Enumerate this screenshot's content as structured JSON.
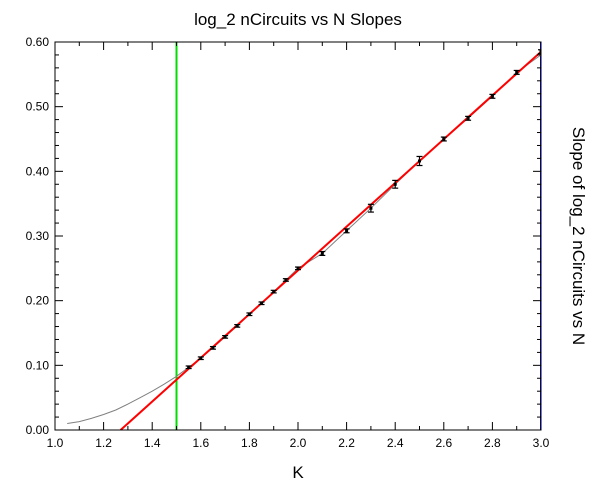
{
  "chart_data": {
    "type": "scatter",
    "title": "log_2 nCircuits  vs N  Slopes",
    "xlabel": "K",
    "ylabel": "Slope of log_2 nCircuits vs N",
    "xlim": [
      1.0,
      3.0
    ],
    "ylim": [
      0.0,
      0.6
    ],
    "x_ticks": [
      "1.0",
      "1.2",
      "1.4",
      "1.6",
      "1.8",
      "2.0",
      "2.2",
      "2.4",
      "2.6",
      "2.8",
      "3.0"
    ],
    "y_ticks": [
      "0.00",
      "0.10",
      "0.20",
      "0.30",
      "0.40",
      "0.50",
      "0.60"
    ],
    "grid": false,
    "series": [
      {
        "kind": "errorbar",
        "color": "#000000",
        "points": [
          {
            "x": 1.55,
            "y": 0.097,
            "err": 0.002
          },
          {
            "x": 1.6,
            "y": 0.111,
            "err": 0.002
          },
          {
            "x": 1.65,
            "y": 0.127,
            "err": 0.002
          },
          {
            "x": 1.7,
            "y": 0.144,
            "err": 0.002
          },
          {
            "x": 1.75,
            "y": 0.161,
            "err": 0.002
          },
          {
            "x": 1.8,
            "y": 0.179,
            "err": 0.002
          },
          {
            "x": 1.85,
            "y": 0.196,
            "err": 0.002
          },
          {
            "x": 1.9,
            "y": 0.214,
            "err": 0.002
          },
          {
            "x": 1.95,
            "y": 0.232,
            "err": 0.002
          },
          {
            "x": 2.0,
            "y": 0.25,
            "err": 0.002
          },
          {
            "x": 2.1,
            "y": 0.273,
            "err": 0.003
          },
          {
            "x": 2.2,
            "y": 0.308,
            "err": 0.003
          },
          {
            "x": 2.3,
            "y": 0.343,
            "err": 0.006
          },
          {
            "x": 2.4,
            "y": 0.38,
            "err": 0.006
          },
          {
            "x": 2.5,
            "y": 0.416,
            "err": 0.007
          },
          {
            "x": 2.6,
            "y": 0.45,
            "err": 0.003
          },
          {
            "x": 2.7,
            "y": 0.482,
            "err": 0.003
          },
          {
            "x": 2.8,
            "y": 0.516,
            "err": 0.003
          },
          {
            "x": 2.9,
            "y": 0.553,
            "err": 0.003
          },
          {
            "x": 3.0,
            "y": 0.585,
            "err": 0.003
          }
        ]
      },
      {
        "kind": "line",
        "color": "#808080",
        "x": [
          1.05,
          1.1,
          1.15,
          1.2,
          1.25,
          1.3,
          1.35,
          1.4,
          1.45,
          1.5,
          1.55,
          1.6,
          1.65,
          1.7,
          1.75,
          1.8,
          1.85,
          1.9,
          1.95,
          2.0,
          2.1,
          2.2,
          2.3,
          2.4,
          2.5,
          2.6,
          2.7,
          2.8,
          2.9,
          3.0
        ],
        "y": [
          0.01,
          0.013,
          0.018,
          0.024,
          0.031,
          0.04,
          0.05,
          0.06,
          0.071,
          0.083,
          0.097,
          0.111,
          0.127,
          0.144,
          0.161,
          0.179,
          0.196,
          0.214,
          0.232,
          0.25,
          0.273,
          0.308,
          0.343,
          0.38,
          0.416,
          0.45,
          0.482,
          0.516,
          0.553,
          0.58
        ]
      },
      {
        "kind": "line",
        "color": "#ff0000",
        "x": [
          1.27,
          3.0
        ],
        "y": [
          0.0,
          0.585
        ]
      }
    ],
    "vlines": [
      {
        "x": 1.5,
        "color": "#00dd00"
      },
      {
        "x": 3.0,
        "color": "#0000ff"
      }
    ]
  }
}
